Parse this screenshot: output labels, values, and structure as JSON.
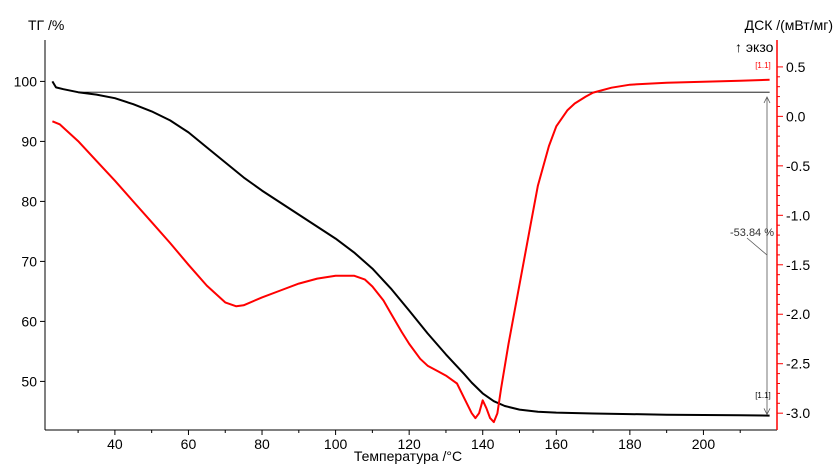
{
  "chart_data": {
    "type": "line",
    "xlabel": "Температура /°C",
    "ylabel_left": "ТГ /%",
    "ylabel_right": "ДСК /(мВт/мг)",
    "exo_label": "↑ экзо",
    "annotation_mass_change": "-53.84 %",
    "marker_label": "[1.1]",
    "xlim": [
      21,
      220
    ],
    "ylim_left": [
      41.9,
      103.9
    ],
    "ylim_right": [
      -3.17,
      0.59
    ],
    "x_ticks": [
      40,
      60,
      80,
      100,
      120,
      140,
      160,
      180,
      200
    ],
    "y_left_ticks": [
      50,
      60,
      70,
      80,
      90,
      100
    ],
    "y_right_ticks": [
      "0.5",
      "0.0",
      "-0.5",
      "-1.0",
      "-1.5",
      "-2.0",
      "-2.5",
      "-3.0"
    ],
    "colors": {
      "tg": "#000000",
      "dsc": "#ff0000",
      "grid": "#000000",
      "annotation": "#555555"
    },
    "series": [
      {
        "axis": "left",
        "color": "#000000",
        "x": [
          23,
          24,
          26,
          30,
          35,
          40,
          45,
          50,
          55,
          60,
          65,
          70,
          75,
          80,
          85,
          90,
          95,
          100,
          105,
          110,
          115,
          120,
          125,
          130,
          135,
          137,
          140,
          143,
          146,
          150,
          155,
          160,
          170,
          180,
          190,
          200,
          210,
          218
        ],
        "y": [
          100,
          99,
          98.7,
          98.2,
          97.8,
          97.2,
          96.2,
          95,
          93.5,
          91.5,
          89,
          86.5,
          84,
          81.8,
          79.8,
          77.8,
          75.8,
          73.8,
          71.5,
          68.8,
          65.5,
          61.8,
          58,
          54.5,
          51.2,
          49.8,
          48,
          46.7,
          45.9,
          45.3,
          44.95,
          44.8,
          44.65,
          44.55,
          44.45,
          44.4,
          44.35,
          44.3
        ]
      },
      {
        "axis": "right",
        "color": "#ff0000",
        "x": [
          23,
          25,
          30,
          35,
          40,
          45,
          50,
          55,
          60,
          65,
          70,
          73,
          75,
          80,
          85,
          90,
          95,
          100,
          105,
          108,
          110,
          113,
          115,
          118,
          120,
          123,
          125,
          128,
          130,
          133,
          135,
          137,
          138,
          139,
          140,
          141,
          142,
          143,
          144,
          145,
          147,
          150,
          153,
          155,
          158,
          160,
          163,
          165,
          168,
          170,
          175,
          180,
          190,
          200,
          210,
          218
        ],
        "y": [
          -0.05,
          -0.08,
          -0.25,
          -0.45,
          -0.65,
          -0.86,
          -1.07,
          -1.28,
          -1.5,
          -1.71,
          -1.88,
          -1.92,
          -1.91,
          -1.83,
          -1.76,
          -1.69,
          -1.64,
          -1.61,
          -1.61,
          -1.65,
          -1.72,
          -1.86,
          -1.99,
          -2.18,
          -2.3,
          -2.45,
          -2.52,
          -2.58,
          -2.62,
          -2.7,
          -2.85,
          -3.0,
          -3.05,
          -3.0,
          -2.87,
          -2.95,
          -3.05,
          -3.09,
          -3.0,
          -2.75,
          -2.3,
          -1.7,
          -1.1,
          -0.7,
          -0.3,
          -0.1,
          0.06,
          0.13,
          0.2,
          0.24,
          0.29,
          0.32,
          0.34,
          0.35,
          0.36,
          0.37
        ]
      }
    ]
  }
}
